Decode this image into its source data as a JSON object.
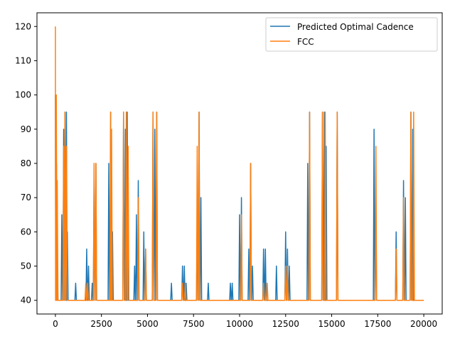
{
  "chart_data": {
    "type": "line",
    "title": "",
    "xlabel": "",
    "ylabel": "",
    "xlim": [
      -1000,
      21000
    ],
    "ylim": [
      36,
      124
    ],
    "x_ticks": [
      0,
      2500,
      5000,
      7500,
      10000,
      12500,
      15000,
      17500,
      20000
    ],
    "x_tick_labels": [
      "0",
      "2500",
      "5000",
      "7500",
      "10000",
      "12500",
      "15000",
      "17500",
      "20000"
    ],
    "y_ticks": [
      40,
      50,
      60,
      70,
      80,
      90,
      100,
      110,
      120
    ],
    "y_tick_labels": [
      "40",
      "50",
      "60",
      "70",
      "80",
      "90",
      "100",
      "110",
      "120"
    ],
    "grid": false,
    "legend_position": "top-right",
    "baseline": 40,
    "series": [
      {
        "name": "Predicted Optimal Cadence",
        "color": "#1f77b4",
        "spikes": [
          [
            0,
            100
          ],
          [
            60,
            80
          ],
          [
            100,
            50
          ],
          [
            350,
            65
          ],
          [
            450,
            90
          ],
          [
            520,
            95
          ],
          [
            600,
            95
          ],
          [
            650,
            60
          ],
          [
            1100,
            45
          ],
          [
            1700,
            55
          ],
          [
            1800,
            50
          ],
          [
            2000,
            45
          ],
          [
            2100,
            75
          ],
          [
            2200,
            80
          ],
          [
            2900,
            80
          ],
          [
            3000,
            95
          ],
          [
            3100,
            60
          ],
          [
            3700,
            95
          ],
          [
            3800,
            90
          ],
          [
            3900,
            95
          ],
          [
            3950,
            60
          ],
          [
            4300,
            50
          ],
          [
            4400,
            65
          ],
          [
            4500,
            75
          ],
          [
            4800,
            60
          ],
          [
            4900,
            55
          ],
          [
            5300,
            95
          ],
          [
            5400,
            90
          ],
          [
            5500,
            95
          ],
          [
            6300,
            45
          ],
          [
            6900,
            50
          ],
          [
            7000,
            50
          ],
          [
            7100,
            45
          ],
          [
            7700,
            65
          ],
          [
            7800,
            95
          ],
          [
            7900,
            70
          ],
          [
            8300,
            45
          ],
          [
            9500,
            45
          ],
          [
            9600,
            45
          ],
          [
            10000,
            65
          ],
          [
            10100,
            70
          ],
          [
            10500,
            55
          ],
          [
            10600,
            80
          ],
          [
            10700,
            50
          ],
          [
            11300,
            55
          ],
          [
            11400,
            55
          ],
          [
            12000,
            50
          ],
          [
            12500,
            60
          ],
          [
            12600,
            55
          ],
          [
            12700,
            50
          ],
          [
            13700,
            80
          ],
          [
            13800,
            95
          ],
          [
            14500,
            95
          ],
          [
            14600,
            95
          ],
          [
            14700,
            85
          ],
          [
            15300,
            95
          ],
          [
            17300,
            90
          ],
          [
            17400,
            70
          ],
          [
            18500,
            60
          ],
          [
            18900,
            75
          ],
          [
            19000,
            70
          ],
          [
            19300,
            95
          ],
          [
            19400,
            90
          ]
        ]
      },
      {
        "name": "FCC",
        "color": "#ff7f0e",
        "spikes": [
          [
            0,
            120
          ],
          [
            50,
            100
          ],
          [
            100,
            75
          ],
          [
            450,
            85
          ],
          [
            520,
            95
          ],
          [
            600,
            85
          ],
          [
            1650,
            45
          ],
          [
            1750,
            45
          ],
          [
            2100,
            80
          ],
          [
            2200,
            80
          ],
          [
            3000,
            95
          ],
          [
            3050,
            90
          ],
          [
            3700,
            95
          ],
          [
            3850,
            95
          ],
          [
            3950,
            85
          ],
          [
            4500,
            70
          ],
          [
            4900,
            55
          ],
          [
            5300,
            95
          ],
          [
            5500,
            95
          ],
          [
            6900,
            45
          ],
          [
            7050,
            45
          ],
          [
            7700,
            85
          ],
          [
            7800,
            95
          ],
          [
            10100,
            65
          ],
          [
            10600,
            80
          ],
          [
            11300,
            45
          ],
          [
            11500,
            45
          ],
          [
            12500,
            50
          ],
          [
            12600,
            50
          ],
          [
            13800,
            95
          ],
          [
            14500,
            95
          ],
          [
            14650,
            95
          ],
          [
            15300,
            95
          ],
          [
            17400,
            85
          ],
          [
            18500,
            55
          ],
          [
            18900,
            70
          ],
          [
            19300,
            95
          ],
          [
            19450,
            95
          ]
        ]
      }
    ]
  }
}
